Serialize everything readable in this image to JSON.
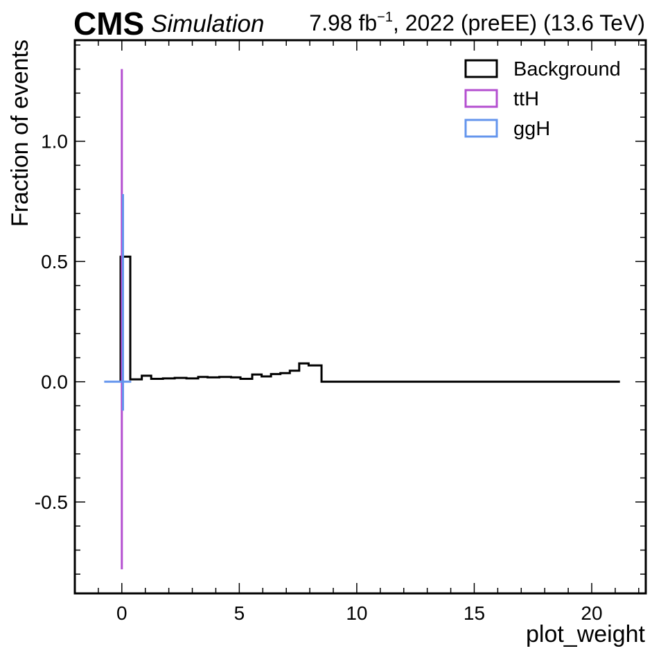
{
  "header": {
    "experiment": "CMS",
    "status": "Simulation",
    "lumi_text": "7.98 fb",
    "lumi_sup": "−1",
    "lumi_rest": ", 2022 (preEE) (13.6 TeV)"
  },
  "chart_data": {
    "type": "histogram",
    "xlabel": "plot_weight",
    "ylabel": "Fraction of events",
    "xlim": [
      -2.0,
      22.3
    ],
    "ylim": [
      -0.88,
      1.42
    ],
    "x_ticks": [
      0,
      5,
      10,
      15,
      20
    ],
    "y_ticks": [
      -0.5,
      0.0,
      0.5,
      1.0
    ],
    "y_tick_labels": [
      "-0.5",
      "0.0",
      "0.5",
      "1.0"
    ],
    "legend_position": "top-right",
    "series": [
      {
        "name": "Background",
        "color": "#000000",
        "bin_edges": [
          -0.05,
          0.36,
          0.85,
          1.25,
          1.75,
          2.25,
          2.75,
          3.25,
          3.65,
          4.15,
          4.65,
          5.05,
          5.55,
          5.95,
          6.35,
          6.75,
          7.15,
          7.55,
          7.95,
          8.5,
          21.2
        ],
        "values": [
          0.52,
          0.01,
          0.025,
          0.012,
          0.014,
          0.016,
          0.014,
          0.02,
          0.018,
          0.02,
          0.018,
          0.012,
          0.03,
          0.022,
          0.032,
          0.036,
          0.046,
          0.076,
          0.068,
          0.0
        ]
      },
      {
        "name": "ttH",
        "color": "#b44fd0",
        "bin_edges": [
          -0.01,
          0.01
        ],
        "values": [
          1.3
        ],
        "neg_value": -0.78
      },
      {
        "name": "ggH",
        "color": "#6495ed",
        "bin_edges": [
          -0.75,
          0.4
        ],
        "values": [
          0.0
        ],
        "spike_x": 0.05,
        "spike_top": 0.78,
        "spike_bottom": -0.12
      }
    ]
  }
}
